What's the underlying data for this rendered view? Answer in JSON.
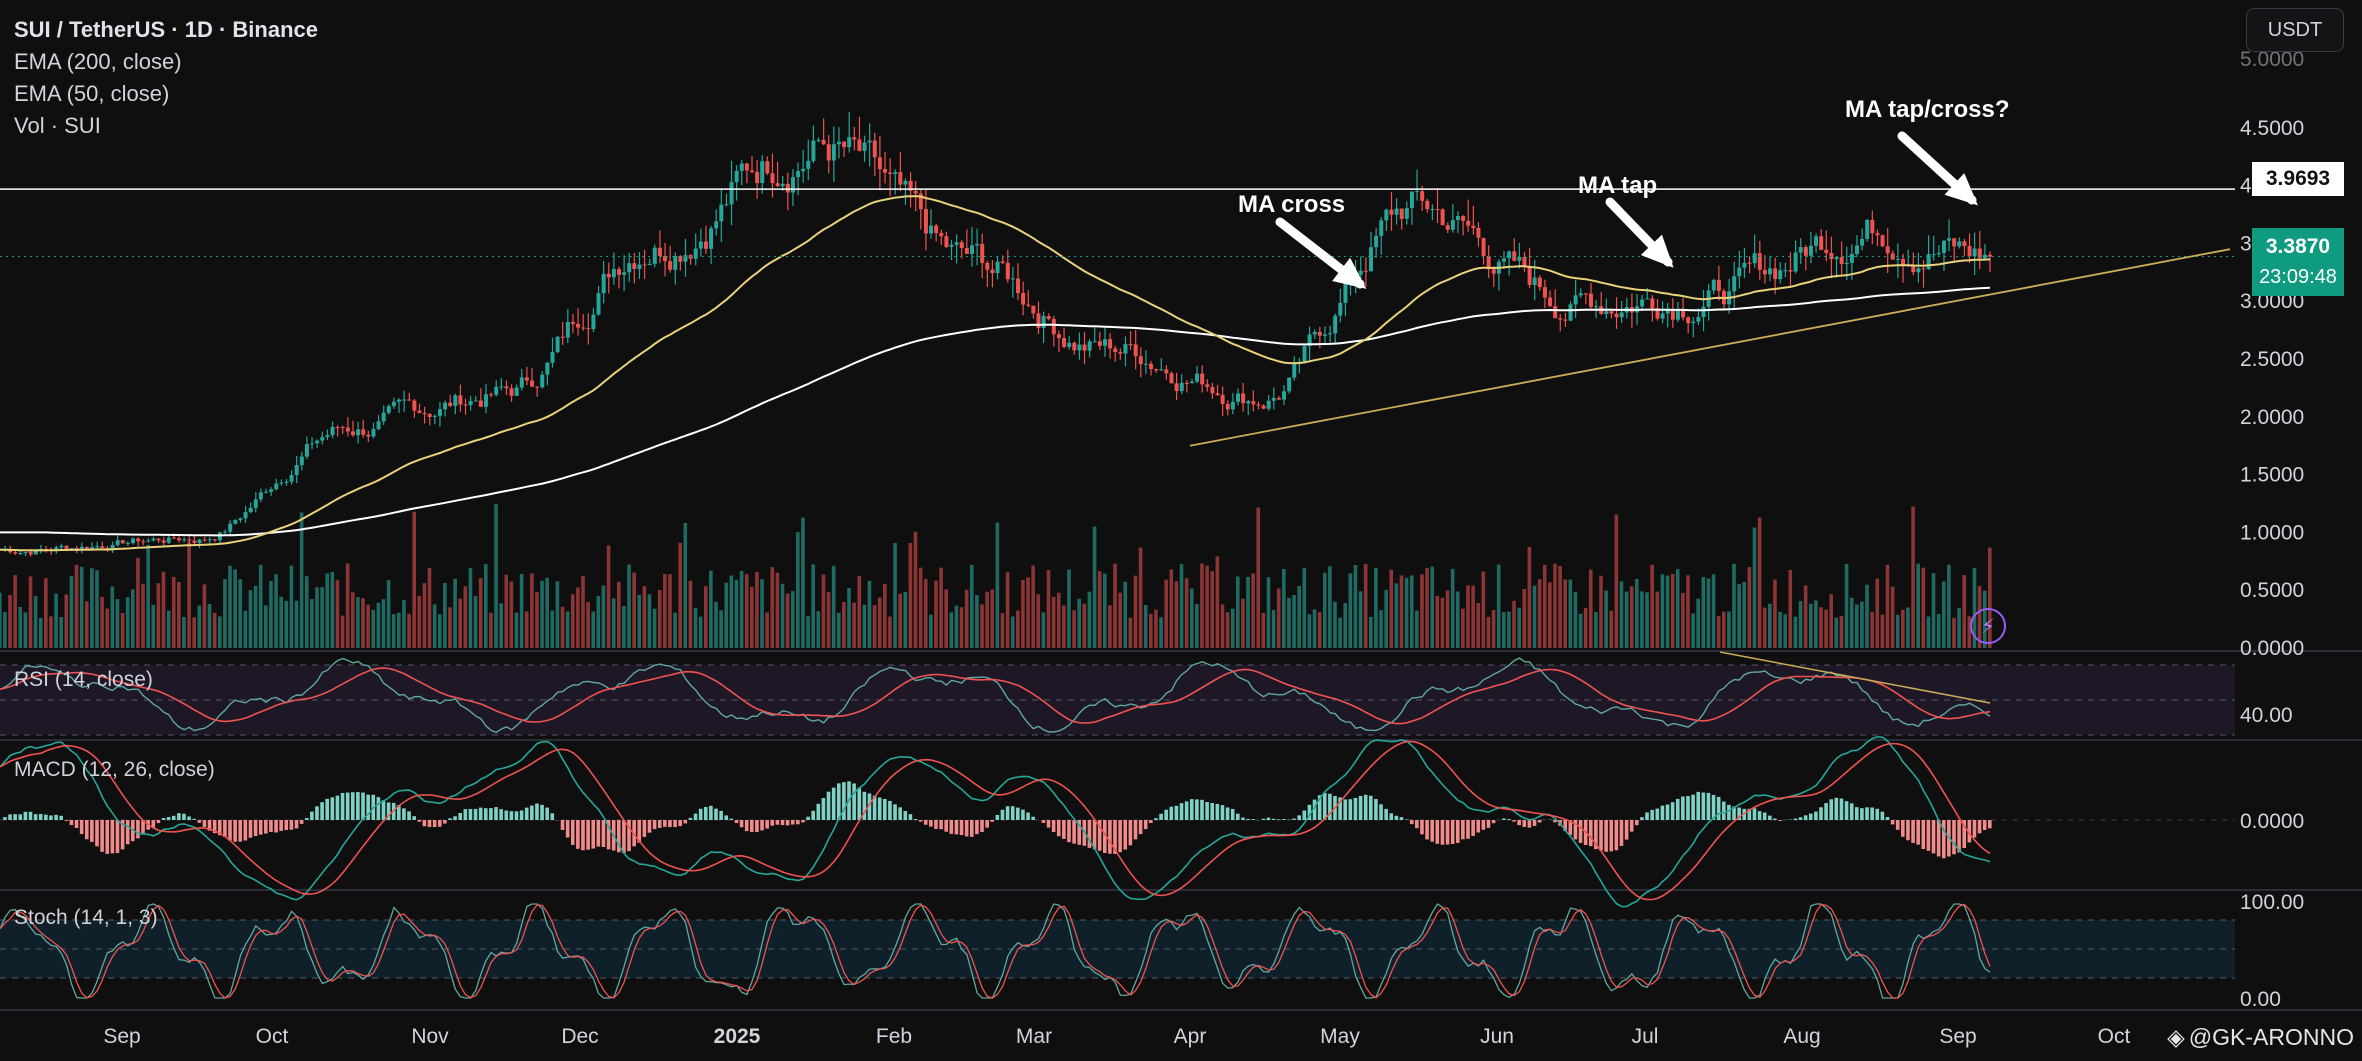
{
  "header": {
    "title": "SUI / TetherUS · 1D · Binance",
    "indicators": [
      "EMA (200, close)",
      "EMA (50, close)",
      "Vol · SUI"
    ],
    "currency_button": "USDT"
  },
  "price_tags": {
    "horizontal_level": "3.9693",
    "last_price": "3.3870",
    "countdown": "23:09:48"
  },
  "watermark": "@GK-ARONNO",
  "colors": {
    "background": "#0f0f0f",
    "up": "#26a69a",
    "down": "#ef5350",
    "ema50": "#e8d27a",
    "ema200": "#ffffff",
    "rsi": "#5fa8a0",
    "rsi_ma": "#ef5350",
    "macd": "#26a69a",
    "signal": "#ef5350",
    "trendline": "#c9ad5a"
  },
  "chart_data": [
    {
      "type": "candlestick",
      "title": "SUI / TetherUS · 1D · Binance",
      "x_ticks": [
        "Sep",
        "Oct",
        "Nov",
        "Dec",
        "2025",
        "Feb",
        "Mar",
        "Apr",
        "May",
        "Jun",
        "Jul",
        "Aug",
        "Sep",
        "Oct"
      ],
      "y_ticks": [
        "4.5000",
        "4.0000",
        "3.5000",
        "3.0000",
        "2.5000",
        "2.0000",
        "1.5000",
        "1.0000",
        "0.5000",
        "0.0000"
      ],
      "ylim": [
        0,
        5
      ],
      "close_series_monthly": [
        {
          "month": "Aug",
          "close": 0.85
        },
        {
          "month": "Sep",
          "close": 0.95
        },
        {
          "month": "Oct",
          "close": 1.9
        },
        {
          "month": "Nov",
          "close": 2.2
        },
        {
          "month": "Dec",
          "close": 3.6
        },
        {
          "month": "2025",
          "close": 4.4
        },
        {
          "month": "Feb",
          "close": 3.3
        },
        {
          "month": "Mar",
          "close": 2.6
        },
        {
          "month": "Apr",
          "close": 2.2
        },
        {
          "month": "May",
          "close": 3.8
        },
        {
          "month": "Jun",
          "close": 3.0
        },
        {
          "month": "Jul",
          "close": 3.1
        },
        {
          "month": "Aug",
          "close": 3.7
        },
        {
          "month": "Sep",
          "close": 3.387
        }
      ],
      "all_time_high": 4.98,
      "horizontal_level": 3.9693,
      "last_price": 3.387,
      "overlays": [
        "EMA (200, close)",
        "EMA (50, close)"
      ],
      "volume_label": "Vol · SUI",
      "annotations": [
        "MA cross",
        "MA tap",
        "MA tap/cross?"
      ]
    },
    {
      "type": "line",
      "title": "RSI (14, close)",
      "y_ticks": [
        "40.00"
      ],
      "bands": [
        30,
        70
      ]
    },
    {
      "type": "line",
      "title": "MACD (12, 26, close)",
      "y_ticks": [
        "0.0000"
      ]
    },
    {
      "type": "line",
      "title": "Stoch (14, 1, 3)",
      "y_ticks": [
        "100.00",
        "0.00"
      ],
      "bands": [
        20,
        80
      ]
    }
  ]
}
